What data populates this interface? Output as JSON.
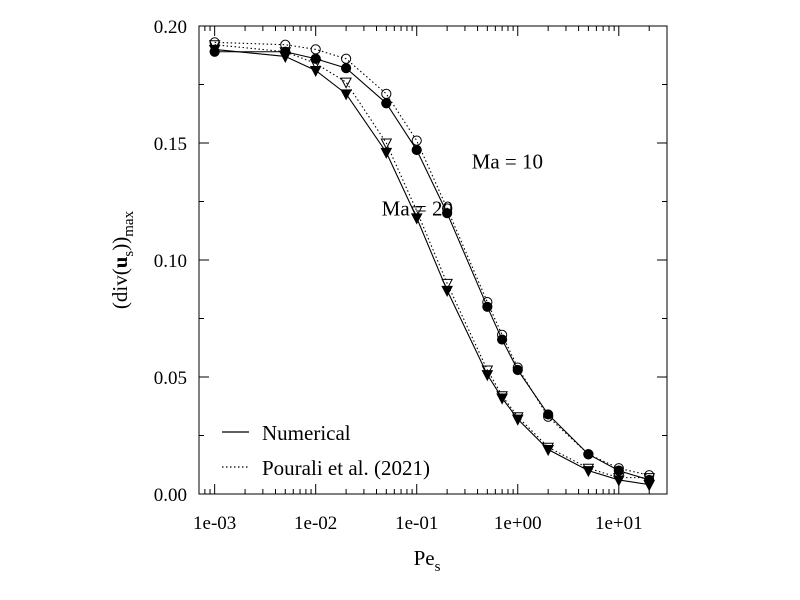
{
  "chart_data": {
    "type": "line",
    "xscale": "log",
    "xlim": [
      0.0007,
      30
    ],
    "ylim": [
      0.0,
      0.2
    ],
    "xlabel": {
      "main": "Pe",
      "sub": "s"
    },
    "ylabel": {
      "prefix": "(div(",
      "bold": "u",
      "sub1": "s",
      "suffix": "))",
      "sub2": "max"
    },
    "xticks": [
      {
        "value": 0.001,
        "label": "1e-03"
      },
      {
        "value": 0.01,
        "label": "1e-02"
      },
      {
        "value": 0.1,
        "label": "1e-01"
      },
      {
        "value": 1,
        "label": "1e+00"
      },
      {
        "value": 10,
        "label": "1e+01"
      }
    ],
    "yticks": [
      {
        "value": 0.0,
        "label": "0.00"
      },
      {
        "value": 0.05,
        "label": "0.05"
      },
      {
        "value": 0.1,
        "label": "0.10"
      },
      {
        "value": 0.15,
        "label": "0.15"
      },
      {
        "value": 0.2,
        "label": "0.20"
      }
    ],
    "grid": false,
    "legend_position": "bottom-left",
    "legend": [
      {
        "label": "Numerical",
        "style": "solid"
      },
      {
        "label": "Pourali et al. (2021)",
        "style": "dotted"
      }
    ],
    "annotations": [
      {
        "text": "Ma = 10",
        "x": 0.35,
        "y": 0.139
      },
      {
        "text": "Ma = 20",
        "x": 0.045,
        "y": 0.119
      }
    ],
    "series": [
      {
        "group": "Ma = 10",
        "source": "Numerical",
        "line": "solid",
        "marker": "circle-filled",
        "x": [
          0.001,
          0.005,
          0.01,
          0.02,
          0.05,
          0.1,
          0.2,
          0.5,
          0.7,
          1,
          2,
          5,
          10,
          20
        ],
        "y": [
          0.189,
          0.189,
          0.186,
          0.182,
          0.167,
          0.147,
          0.12,
          0.08,
          0.066,
          0.053,
          0.034,
          0.017,
          0.01,
          0.006
        ]
      },
      {
        "group": "Ma = 10",
        "source": "Pourali et al. (2021)",
        "line": "dotted",
        "marker": "circle-open",
        "x": [
          0.001,
          0.005,
          0.01,
          0.02,
          0.05,
          0.1,
          0.2,
          0.5,
          0.7,
          1,
          2,
          5,
          10,
          20
        ],
        "y": [
          0.193,
          0.192,
          0.19,
          0.186,
          0.171,
          0.151,
          0.122,
          0.082,
          0.068,
          0.054,
          0.033,
          0.017,
          0.011,
          0.008
        ]
      },
      {
        "group": "Ma = 20",
        "source": "Numerical",
        "line": "solid",
        "marker": "triangle-down-filled",
        "x": [
          0.001,
          0.005,
          0.01,
          0.02,
          0.05,
          0.1,
          0.2,
          0.5,
          0.7,
          1,
          2,
          5,
          10,
          20
        ],
        "y": [
          0.19,
          0.187,
          0.181,
          0.171,
          0.146,
          0.118,
          0.087,
          0.051,
          0.041,
          0.032,
          0.019,
          0.01,
          0.006,
          0.004
        ]
      },
      {
        "group": "Ma = 20",
        "source": "Pourali et al. (2021)",
        "line": "dotted",
        "marker": "triangle-down-open",
        "x": [
          0.001,
          0.005,
          0.01,
          0.02,
          0.05,
          0.1,
          0.2,
          0.5,
          0.7,
          1,
          2,
          5,
          10,
          20
        ],
        "y": [
          0.192,
          0.189,
          0.184,
          0.176,
          0.15,
          0.121,
          0.09,
          0.053,
          0.042,
          0.033,
          0.02,
          0.011,
          0.007,
          0.007
        ]
      }
    ]
  }
}
